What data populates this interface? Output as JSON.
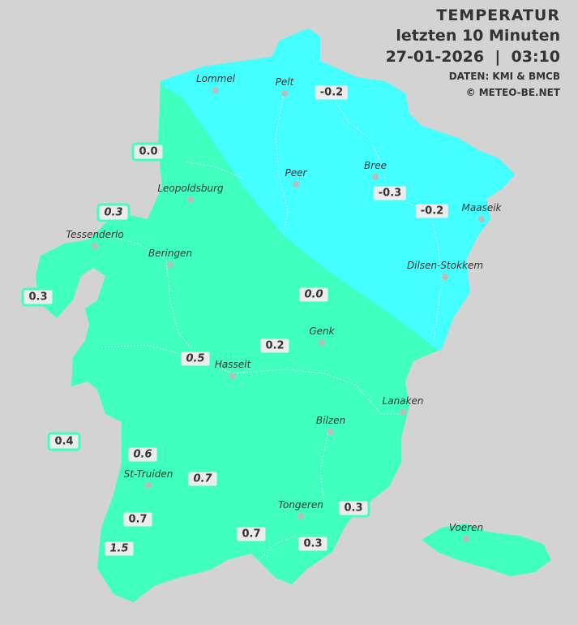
{
  "header": {
    "title": "TEMPERATUR",
    "subtitle": "letzten 10 Minuten",
    "datetime": "27-01-2026  |  03:10",
    "source": "DATEN: KMI & BMCB",
    "copyright": "© METEO-BE.NET"
  },
  "colors": {
    "background": "#d3d3d3",
    "cold_zone": "#44ffff",
    "mild_zone": "#40ffbf",
    "label_bg": "#ececec"
  },
  "cities": [
    {
      "name": "Lommel"
    },
    {
      "name": "Pelt"
    },
    {
      "name": "Peer"
    },
    {
      "name": "Bree"
    },
    {
      "name": "Maaseik"
    },
    {
      "name": "Leopoldsburg"
    },
    {
      "name": "Tessenderlo"
    },
    {
      "name": "Beringen"
    },
    {
      "name": "Dilsen-Stokkem"
    },
    {
      "name": "Genk"
    },
    {
      "name": "Hasselt"
    },
    {
      "name": "Lanaken"
    },
    {
      "name": "Bilzen"
    },
    {
      "name": "St-Truiden"
    },
    {
      "name": "Tongeren"
    },
    {
      "name": "Voeren"
    }
  ],
  "readings": [
    "-0.2",
    "0.0",
    "-0.3",
    "-0.2",
    "0.3",
    "0.3",
    "0.0",
    "0.2",
    "0.5",
    "0.4",
    "0.6",
    "0.7",
    "0.7",
    "1.5",
    "0.7",
    "0.3",
    "0.3"
  ]
}
